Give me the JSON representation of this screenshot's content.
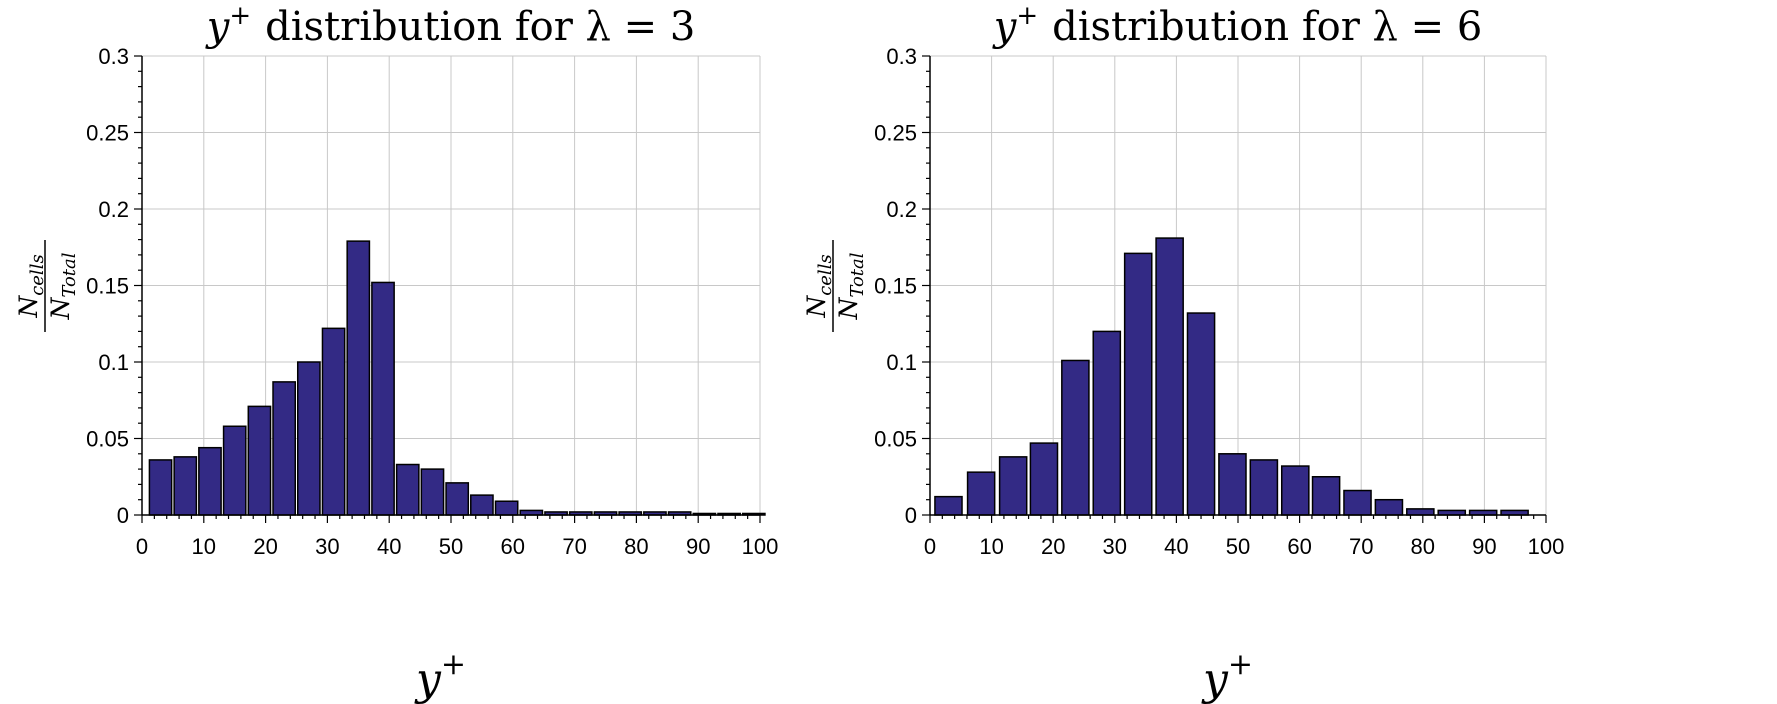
{
  "chart_data": [
    {
      "type": "bar",
      "title_prefix": "y",
      "title_sup": "+",
      "title_text": "distribution for λ = 3",
      "xlabel": "y",
      "xlabel_sup": "+",
      "ylabel_num": "N",
      "ylabel_num_sub": "cells",
      "ylabel_den": "N",
      "ylabel_den_sub": "Total",
      "xlim": [
        0,
        100
      ],
      "ylim": [
        0,
        0.3
      ],
      "xticks": [
        0,
        10,
        20,
        30,
        40,
        50,
        60,
        70,
        80,
        90,
        100
      ],
      "yticks": [
        0,
        0.05,
        0.1,
        0.15,
        0.2,
        0.25,
        0.3
      ],
      "ytick_labels": [
        "0",
        "0.05",
        "0.1",
        "0.15",
        "0.2",
        "0.25",
        "0.3"
      ],
      "grid": true,
      "bar_width": 3.6,
      "bar_color": "#332a85",
      "x": [
        3.0,
        7.0,
        11.0,
        15.0,
        19.0,
        23.0,
        27.0,
        31.0,
        35.0,
        39.0,
        43.0,
        47.0,
        51.0,
        55.0,
        59.0,
        63.0,
        67.0,
        71.0,
        75.0,
        79.0,
        83.0,
        87.0,
        91.0,
        95.0,
        99.0
      ],
      "values": [
        0.036,
        0.038,
        0.044,
        0.058,
        0.071,
        0.087,
        0.1,
        0.122,
        0.179,
        0.152,
        0.033,
        0.03,
        0.021,
        0.013,
        0.009,
        0.003,
        0.002,
        0.002,
        0.002,
        0.002,
        0.002,
        0.002,
        0.001,
        0.001,
        0.001
      ]
    },
    {
      "type": "bar",
      "title_prefix": "y",
      "title_sup": "+",
      "title_text": "distribution for λ = 6",
      "xlabel": "y",
      "xlabel_sup": "+",
      "ylabel_num": "N",
      "ylabel_num_sub": "cells",
      "ylabel_den": "N",
      "ylabel_den_sub": "Total",
      "xlim": [
        0,
        100
      ],
      "ylim": [
        0,
        0.3
      ],
      "xticks": [
        0,
        10,
        20,
        30,
        40,
        50,
        60,
        70,
        80,
        90,
        100
      ],
      "yticks": [
        0,
        0.05,
        0.1,
        0.15,
        0.2,
        0.25,
        0.3
      ],
      "ytick_labels": [
        "0",
        "0.05",
        "0.1",
        "0.15",
        "0.2",
        "0.25",
        "0.3"
      ],
      "grid": true,
      "bar_width": 4.4,
      "bar_color": "#332a85",
      "x": [
        3.0,
        8.3,
        13.5,
        18.5,
        23.6,
        28.7,
        33.8,
        38.9,
        44.0,
        49.1,
        54.2,
        59.3,
        64.3,
        69.4,
        74.5,
        79.6,
        84.7,
        89.8,
        94.9
      ],
      "values": [
        0.012,
        0.028,
        0.038,
        0.047,
        0.101,
        0.12,
        0.171,
        0.181,
        0.132,
        0.04,
        0.036,
        0.032,
        0.025,
        0.016,
        0.01,
        0.004,
        0.003,
        0.003,
        0.003
      ]
    }
  ]
}
